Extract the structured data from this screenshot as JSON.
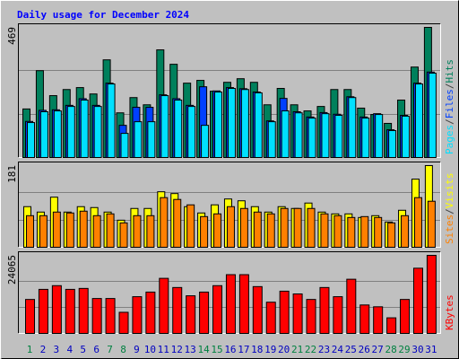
{
  "chart_data": [
    {
      "type": "bar",
      "title": "Daily usage for December 2024",
      "ylim": [
        0,
        469
      ],
      "yticks": [
        469
      ],
      "grid": true,
      "legend_separator": "/",
      "series": [
        {
          "name": "Hits",
          "color": "#00805c",
          "values": [
            175,
            313,
            223,
            245,
            252,
            229,
            352,
            161,
            216,
            190,
            388,
            336,
            268,
            278,
            239,
            271,
            284,
            271,
            190,
            249,
            190,
            168,
            184,
            245,
            245,
            178,
            155,
            123,
            207,
            326,
            469
          ]
        },
        {
          "name": "Files",
          "color": "#0040ff",
          "values": [
            130,
            170,
            172,
            188,
            212,
            188,
            268,
            116,
            181,
            181,
            226,
            212,
            188,
            255,
            240,
            252,
            248,
            236,
            132,
            213,
            165,
            146,
            162,
            156,
            219,
            146,
            158,
            100,
            152,
            268,
            308
          ]
        },
        {
          "name": "Pages",
          "color": "#00e0ff",
          "values": [
            126,
            165,
            168,
            184,
            207,
            184,
            265,
            87,
            129,
            129,
            223,
            207,
            184,
            116,
            236,
            249,
            245,
            233,
            129,
            168,
            161,
            142,
            158,
            152,
            216,
            142,
            155,
            97,
            149,
            265,
            304
          ]
        }
      ]
    },
    {
      "type": "bar",
      "ylim": [
        0,
        181
      ],
      "yticks": [
        181
      ],
      "grid": true,
      "legend_separator": "/",
      "series": [
        {
          "name": "Visits",
          "color": "#ffff00",
          "values": [
            90,
            78,
            111,
            78,
            90,
            88,
            78,
            60,
            86,
            86,
            123,
            119,
            90,
            76,
            94,
            107,
            103,
            90,
            78,
            90,
            86,
            98,
            78,
            74,
            74,
            66,
            70,
            56,
            82,
            151,
            181
          ]
        },
        {
          "name": "Sites",
          "color": "#ff8000",
          "values": [
            70,
            70,
            78,
            76,
            80,
            70,
            74,
            54,
            70,
            70,
            110,
            106,
            94,
            68,
            74,
            90,
            86,
            78,
            74,
            86,
            86,
            86,
            74,
            70,
            66,
            68,
            66,
            54,
            70,
            110,
            102
          ]
        }
      ]
    },
    {
      "type": "bar",
      "ylim": [
        0,
        24065
      ],
      "yticks": [
        24065
      ],
      "grid": true,
      "categories": [
        "1",
        "2",
        "3",
        "4",
        "5",
        "6",
        "7",
        "8",
        "9",
        "10",
        "11",
        "12",
        "13",
        "14",
        "15",
        "16",
        "17",
        "18",
        "19",
        "20",
        "21",
        "22",
        "23",
        "24",
        "25",
        "26",
        "27",
        "28",
        "29",
        "30",
        "31"
      ],
      "category_colors": [
        "#008040",
        "#0000c0",
        "#0000c0",
        "#0000c0",
        "#0000c0",
        "#0000c0",
        "#008040",
        "#008040",
        "#0000c0",
        "#0000c0",
        "#0000c0",
        "#0000c0",
        "#0000c0",
        "#008040",
        "#008040",
        "#0000c0",
        "#0000c0",
        "#0000c0",
        "#0000c0",
        "#0000c0",
        "#008040",
        "#008040",
        "#0000c0",
        "#0000c0",
        "#0000c0",
        "#0000c0",
        "#0000c0",
        "#008040",
        "#008040",
        "#0000c0",
        "#0000c0"
      ],
      "series": [
        {
          "name": "KBytes",
          "color": "#ff0000",
          "values": [
            10470,
            13580,
            14720,
            13580,
            13870,
            10760,
            10760,
            6510,
            11320,
            12740,
            16980,
            14150,
            11600,
            12740,
            14720,
            18110,
            18110,
            14430,
            9620,
            13020,
            12170,
            10470,
            14150,
            11320,
            16700,
            8770,
            8210,
            4810,
            10470,
            20100,
            24065
          ]
        }
      ]
    }
  ]
}
